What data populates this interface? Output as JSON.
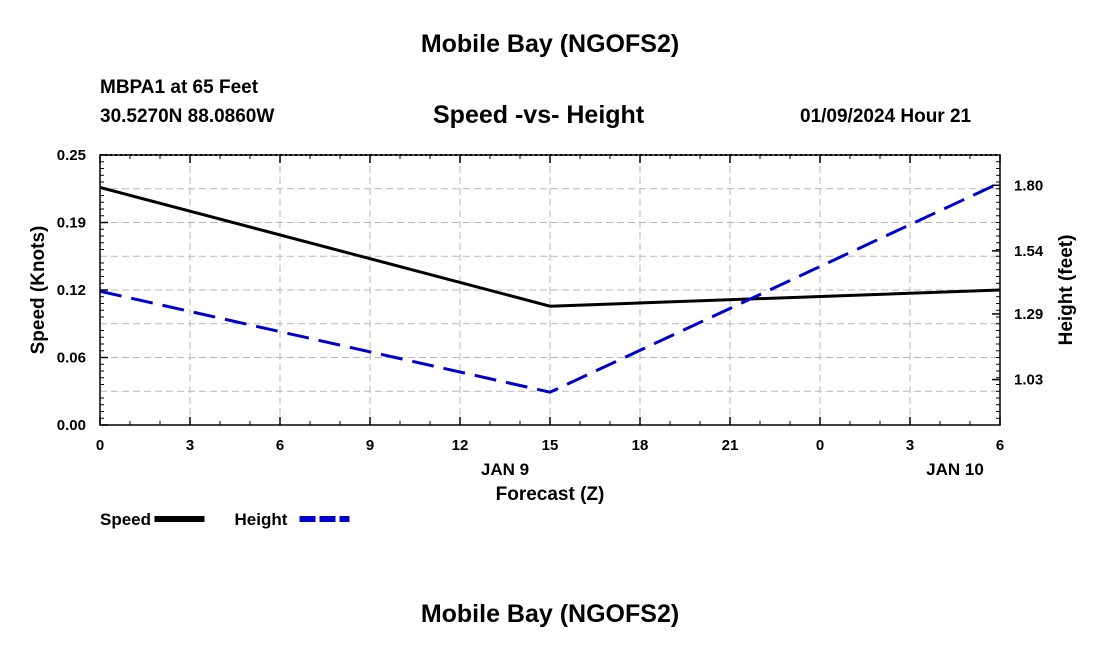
{
  "header": {
    "title": "Mobile Bay (NGOFS2)",
    "station": "MBPA1 at 65 Feet",
    "coords": "30.5270N  88.0860W",
    "subtitle": "Speed -vs- Height",
    "timestamp": "01/09/2024 Hour 21"
  },
  "footer": {
    "title": "Mobile Bay (NGOFS2)"
  },
  "colors": {
    "speed": "#000000",
    "height": "#0000cc",
    "grid": "#b8b8b8"
  },
  "chart_data": {
    "type": "line",
    "title": "Speed -vs- Height",
    "xlabel": "Forecast (Z)",
    "ylabel": "Speed (Knots)",
    "y2label": "Height (feet)",
    "x_ticks": [
      "0",
      "3",
      "6",
      "9",
      "12",
      "15",
      "18",
      "21",
      "0",
      "3",
      "6"
    ],
    "x_date_labels": [
      {
        "after_tick_index": 4,
        "text": "JAN 9"
      },
      {
        "after_tick_index": 9,
        "text": "JAN 10"
      }
    ],
    "ylim": [
      0,
      0.25
    ],
    "y_ticks": [
      "0.00",
      "0.06",
      "0.12",
      "0.19",
      "0.25"
    ],
    "y2lim": [
      0.85,
      1.92
    ],
    "y2_ticks": [
      "1.03",
      "1.29",
      "1.54",
      "1.80"
    ],
    "grid": true,
    "legend_placement": "bottom-left",
    "series": [
      {
        "name": "Speed",
        "axis": "left",
        "style": "solid",
        "x_index": [
          0,
          5,
          10
        ],
        "values": [
          0.22,
          0.11,
          0.125
        ]
      },
      {
        "name": "Height",
        "axis": "right",
        "style": "dashed",
        "x_index": [
          0,
          5,
          10
        ],
        "values": [
          1.38,
          0.98,
          1.81
        ]
      }
    ]
  }
}
